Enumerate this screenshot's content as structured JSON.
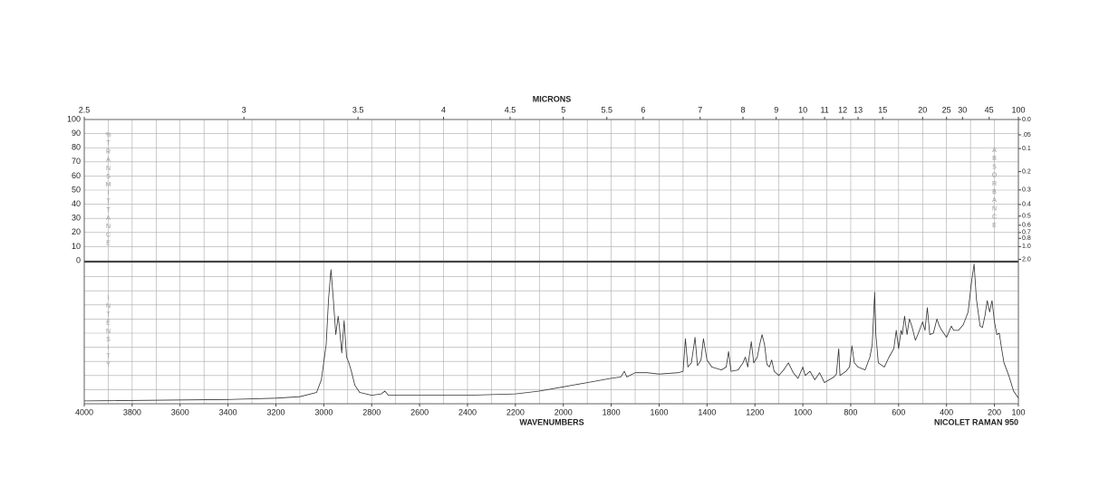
{
  "chart_data": {
    "type": "line",
    "microns_label": "MICRONS",
    "xlabel": "WAVENUMBERS",
    "instrument": "NICOLET RAMAN 950",
    "transmittance_label": "%TRANSMITTANCE",
    "absorbance_label": "ABSORBANCE",
    "intensity_label": "INTENSITY",
    "color": "#333333",
    "grid": true,
    "xlim": [
      4000,
      100
    ],
    "xticks": [
      4000,
      3800,
      3600,
      3400,
      3200,
      3000,
      2800,
      2600,
      2400,
      2200,
      2000,
      1800,
      1600,
      1400,
      1200,
      1000,
      800,
      600,
      400,
      200,
      100
    ],
    "minor_xticks": [
      3900,
      3700,
      3500,
      3300,
      3100,
      2900,
      2700,
      2500,
      2300,
      2100,
      1900,
      1700,
      1500,
      1300,
      1100,
      900,
      700,
      500,
      300
    ],
    "microns_ticks": [
      2.5,
      3,
      3.5,
      4,
      4.5,
      5,
      5.5,
      6,
      7,
      8,
      9,
      10,
      11,
      12,
      13,
      15,
      20,
      25,
      30,
      45,
      100
    ],
    "transmittance_lim": [
      0,
      100
    ],
    "transmittance_ticks": [
      0,
      10,
      20,
      30,
      40,
      50,
      60,
      70,
      80,
      90,
      100
    ],
    "absorbance_ticks": [
      {
        "value": 0,
        "label": "0.0"
      },
      {
        "value": 0.05,
        "label": ".05"
      },
      0.1,
      0.2,
      0.3,
      0.4,
      0.5,
      0.6,
      0.7,
      0.8,
      {
        "value": 1,
        "label": "1.0"
      },
      {
        "value": 2,
        "label": "2.0"
      }
    ],
    "ylim": [
      0,
      100
    ],
    "yticks": [
      0,
      10,
      20,
      30,
      40,
      50,
      60,
      70,
      80,
      90,
      100
    ],
    "x": [
      4000,
      3400,
      3200,
      3100,
      3030,
      3010,
      2990,
      2980,
      2970,
      2960,
      2950,
      2940,
      2935,
      2925,
      2915,
      2905,
      2895,
      2885,
      2870,
      2850,
      2800,
      2760,
      2745,
      2730,
      2600,
      2400,
      2200,
      2100,
      2000,
      1900,
      1800,
      1760,
      1745,
      1735,
      1700,
      1650,
      1600,
      1520,
      1500,
      1490,
      1480,
      1465,
      1450,
      1440,
      1425,
      1415,
      1400,
      1380,
      1340,
      1320,
      1310,
      1300,
      1270,
      1250,
      1240,
      1230,
      1215,
      1205,
      1190,
      1180,
      1170,
      1160,
      1150,
      1140,
      1130,
      1120,
      1100,
      1080,
      1060,
      1040,
      1020,
      1000,
      990,
      970,
      950,
      930,
      910,
      890,
      870,
      860,
      850,
      845,
      820,
      805,
      795,
      785,
      770,
      740,
      720,
      710,
      700,
      695,
      685,
      660,
      640,
      620,
      610,
      600,
      590,
      585,
      575,
      565,
      555,
      545,
      530,
      520,
      500,
      490,
      480,
      470,
      455,
      440,
      430,
      420,
      400,
      380,
      370,
      350,
      330,
      310,
      295,
      285,
      275,
      260,
      250,
      240,
      230,
      220,
      210,
      200,
      190,
      180,
      170,
      160,
      140,
      120,
      100
    ],
    "values": [
      2,
      3,
      4,
      5,
      8,
      17,
      42,
      74,
      95,
      74,
      49,
      62,
      55,
      36,
      59,
      33,
      29,
      23,
      13,
      8,
      6,
      7,
      9,
      6,
      6,
      6,
      7,
      9,
      12,
      15,
      18,
      19,
      23,
      19,
      22,
      22,
      21,
      22,
      23,
      46,
      26,
      29,
      47,
      27,
      31,
      46,
      31,
      26,
      24,
      26,
      37,
      23,
      24,
      29,
      33,
      26,
      44,
      29,
      33,
      42,
      49,
      42,
      28,
      26,
      31,
      23,
      20,
      24,
      29,
      22,
      18,
      26,
      20,
      23,
      17,
      22,
      15,
      17,
      19,
      21,
      39,
      20,
      23,
      26,
      41,
      29,
      26,
      24,
      33,
      42,
      79,
      49,
      29,
      26,
      33,
      39,
      52,
      39,
      52,
      49,
      62,
      49,
      60,
      55,
      45,
      49,
      58,
      52,
      68,
      49,
      50,
      60,
      55,
      52,
      47,
      55,
      52,
      52,
      56,
      65,
      87,
      99,
      74,
      55,
      54,
      62,
      73,
      65,
      73,
      58,
      49,
      50,
      39,
      29,
      20,
      9,
      4
    ]
  }
}
